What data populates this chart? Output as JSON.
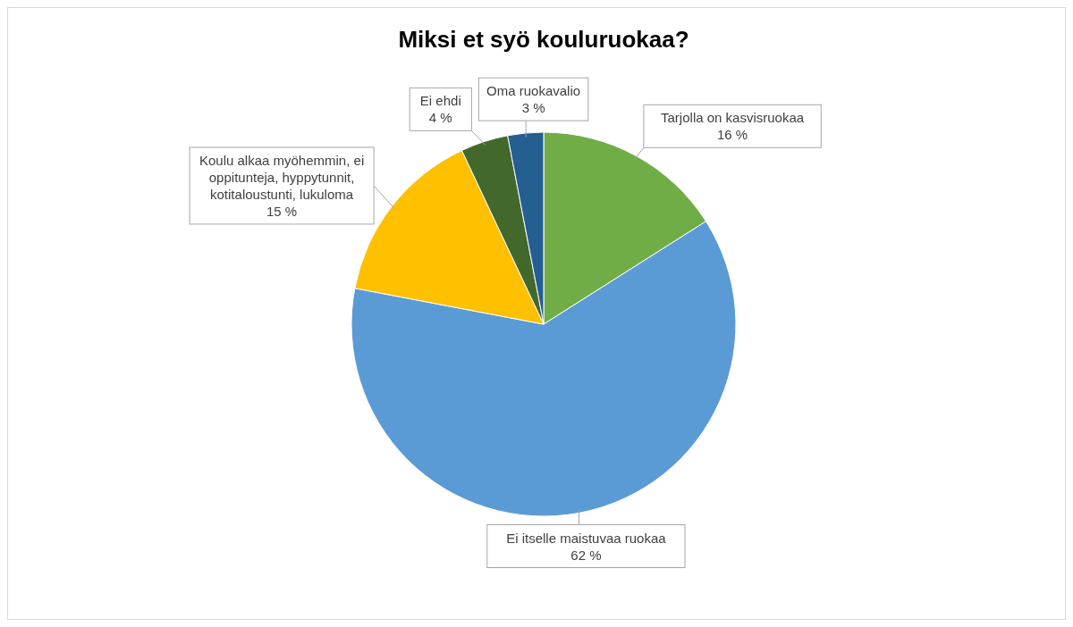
{
  "chart_data": {
    "type": "pie",
    "title": "Miksi et syö kouluruokaa?",
    "categories": [
      "Tarjolla on kasvisruokaa",
      "Ei itselle maistuvaa ruokaa",
      "Koulu alkaa myöhemmin, ei oppitunteja, hyppytunnit, kotitaloustunti, lukuloma",
      "Ei ehdi",
      "Oma ruokavalio"
    ],
    "values": [
      16,
      62,
      15,
      4,
      3
    ],
    "value_labels": [
      "16 %",
      "62 %",
      "15 %",
      "4 %",
      "3 %"
    ],
    "colors": [
      "#70ad47",
      "#5b9bd5",
      "#ffc000",
      "#43682b",
      "#255e91"
    ]
  }
}
